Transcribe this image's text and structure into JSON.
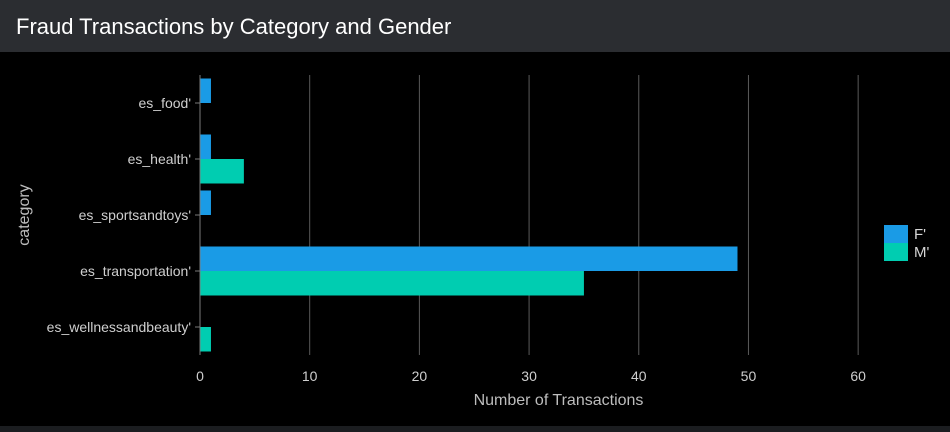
{
  "panel": {
    "title": "Fraud Transactions by Category and Gender"
  },
  "colors": {
    "header_bg": "#2b2d31",
    "plot_bg": "#000000",
    "grid": "#5a5a5a",
    "series_F": "#1a9be6",
    "series_M": "#00cdb1"
  },
  "chart_data": {
    "type": "bar",
    "orientation": "horizontal",
    "title": "",
    "xlabel": "Number of Transactions",
    "ylabel": "category",
    "xlim": [
      0,
      65
    ],
    "x_ticks": [
      0,
      10,
      20,
      30,
      40,
      50,
      60
    ],
    "grid": "vertical",
    "legend_position": "right",
    "categories": [
      "es_food'",
      "es_health'",
      "es_sportsandtoys'",
      "es_transportation'",
      "es_wellnessandbeauty'"
    ],
    "series": [
      {
        "name": "F'",
        "color": "#1a9be6",
        "values": [
          1,
          1,
          1,
          49,
          0
        ]
      },
      {
        "name": "M'",
        "color": "#00cdb1",
        "values": [
          0,
          4,
          0,
          35,
          1
        ]
      }
    ]
  }
}
